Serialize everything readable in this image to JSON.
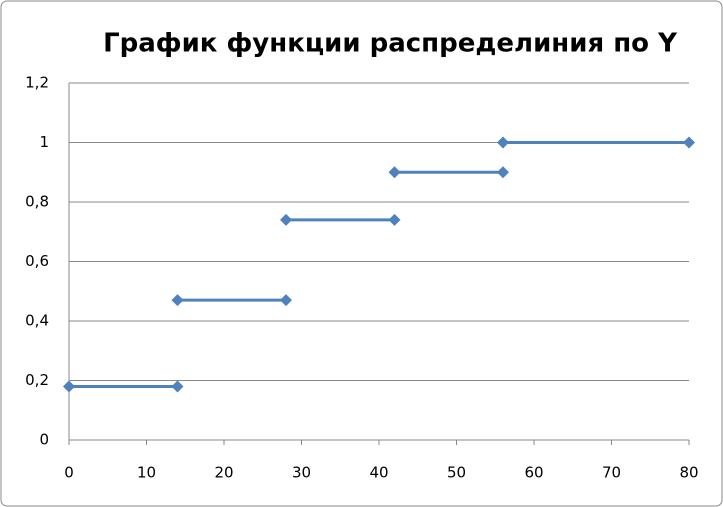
{
  "chart_data": {
    "type": "line",
    "title": "График функции распределиния по Y",
    "series": [
      {
        "color": "#4f81bd",
        "x": [
          0,
          14
        ],
        "values": [
          0.18,
          0.18
        ]
      },
      {
        "color": "#4f81bd",
        "x": [
          14,
          28
        ],
        "values": [
          0.47,
          0.47
        ]
      },
      {
        "color": "#4f81bd",
        "x": [
          28,
          42
        ],
        "values": [
          0.74,
          0.74
        ]
      },
      {
        "color": "#4f81bd",
        "x": [
          42,
          56
        ],
        "values": [
          0.9,
          0.9
        ]
      },
      {
        "color": "#4f81bd",
        "x": [
          56,
          80
        ],
        "values": [
          1,
          1
        ]
      }
    ],
    "xlim": [
      0,
      80
    ],
    "xticks": [
      0,
      10,
      20,
      30,
      40,
      50,
      60,
      70,
      80
    ],
    "ylim": [
      0,
      1.2
    ],
    "yticks": [
      0,
      {
        "value": 0.2,
        "label": "0,2"
      },
      {
        "value": 0.4,
        "label": "0,4"
      },
      {
        "value": 0.6,
        "label": "0,6"
      },
      {
        "value": 0.8,
        "label": "0,8"
      },
      1,
      {
        "value": 1.2,
        "label": "1,2"
      }
    ],
    "grid": true
  }
}
